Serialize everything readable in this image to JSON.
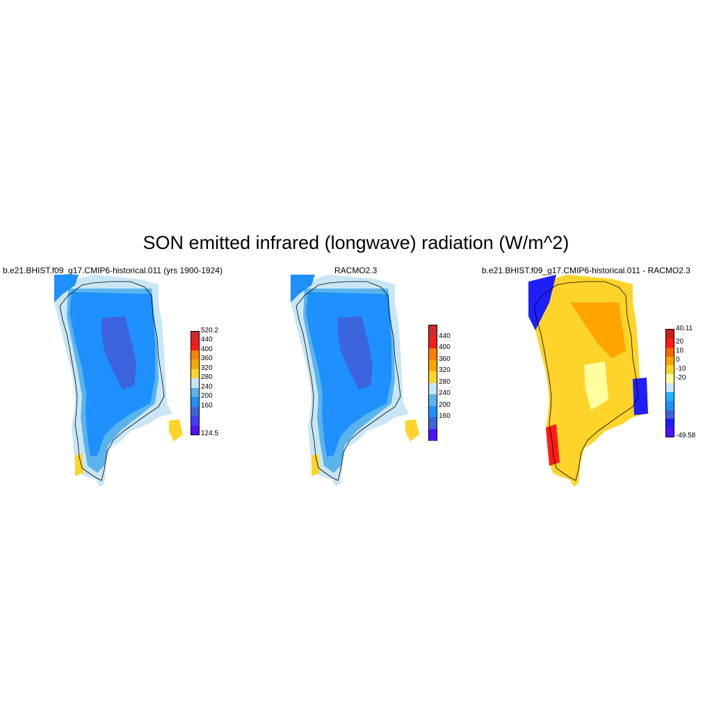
{
  "title": "SON emitted infrared (longwave) radiation (W/m^2)",
  "panels": [
    {
      "title": "b.e21.BHIST.f09_g17.CMIP6-historical.011 (yrs 1900-1924)",
      "colorbar": {
        "min_label": "124.5",
        "max_label": "520.2",
        "tick_labels": [
          "440",
          "400",
          "360",
          "320",
          "280",
          "240",
          "200",
          "160"
        ],
        "colors": [
          "#d62728",
          "#ff1a1a",
          "#ff7f00",
          "#ffa500",
          "#ffd42a",
          "#c8e6f5",
          "#5ab4eb",
          "#1e90ff",
          "#3c64dc",
          "#4040ff",
          "#4d14ff"
        ]
      }
    },
    {
      "title": "RACMO2.3",
      "colorbar": {
        "tick_labels": [
          "440",
          "400",
          "360",
          "320",
          "280",
          "240",
          "200",
          "160"
        ],
        "colors": [
          "#d62728",
          "#ff1a1a",
          "#ff7f00",
          "#ffa500",
          "#ffd42a",
          "#c8e6f5",
          "#5ab4eb",
          "#1e90ff",
          "#3c64dc",
          "#4d14ff"
        ]
      }
    },
    {
      "title": "b.e21.BHIST.f09_g17.CMIP6-historical.011 - RACMO2.3",
      "colorbar": {
        "min_label": "-49.58",
        "max_label": "40.11",
        "tick_labels": [
          "20",
          "10",
          "0",
          "-10",
          "-20"
        ],
        "colors": [
          "#c81e1e",
          "#ff1a1a",
          "#ff6600",
          "#ffa500",
          "#ffd42a",
          "#ffffa0",
          "#c8e6f5",
          "#1eb4ff",
          "#1e90ff",
          "#3c64dc",
          "#1e1eff",
          "#4d14ff"
        ]
      }
    }
  ],
  "field_colors": {
    "core": "#3c64dc",
    "ice": "#1e90ff",
    "mid": "#5ab4eb",
    "edge": "#c8e6f5",
    "warm": "#ffd42a",
    "diff_bg": "#ffd42a",
    "diff_hot": "#ffa500",
    "diff_pale": "#ffffa0",
    "diff_cold": "#1e1eff",
    "diff_red": "#ff1a1a",
    "coast": "#000000"
  }
}
